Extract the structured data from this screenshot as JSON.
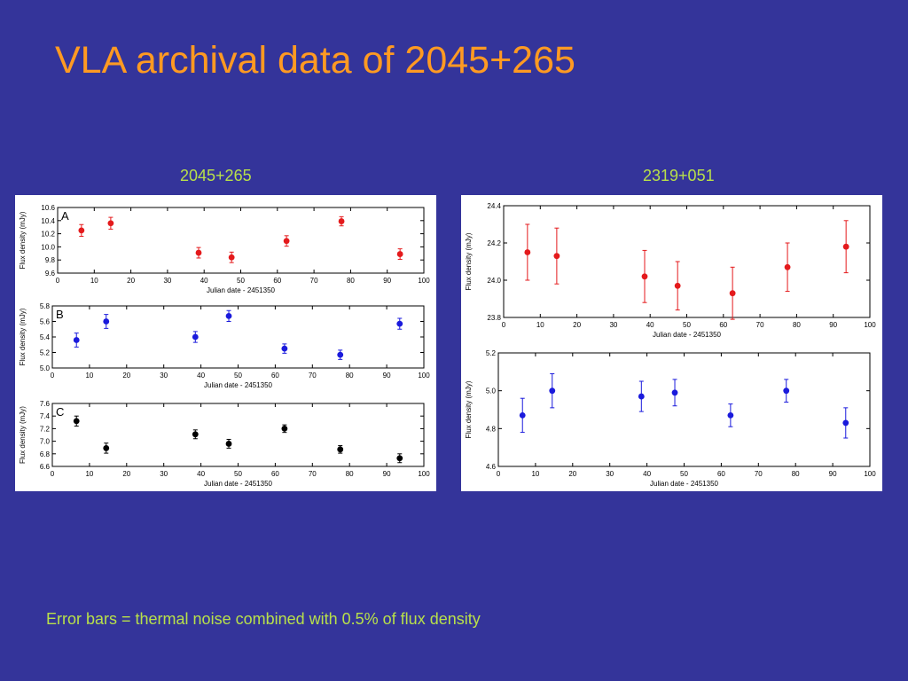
{
  "slide": {
    "title": "VLA archival data of 2045+265",
    "left_heading": "2045+265",
    "right_heading": "2319+051",
    "caption": "Error bars = thermal noise combined with 0.5% of flux density"
  },
  "colors": {
    "background": "#34349a",
    "title": "#ff9a22",
    "headings": "#b8e04a",
    "red": "#e41a1c",
    "blue": "#1a1adc",
    "black": "#000000"
  },
  "chart_data": [
    {
      "id": "A",
      "type": "scatter",
      "panel_label": "A",
      "xlabel": "Julian date - 2451350",
      "ylabel": "Flux density (mJy)",
      "xlim": [
        0,
        100
      ],
      "ylim": [
        9.6,
        10.6
      ],
      "xticks": [
        0,
        10,
        20,
        30,
        40,
        50,
        60,
        70,
        80,
        90,
        100
      ],
      "yticks": [
        "9.6",
        "9.8",
        "10.0",
        "10.2",
        "10.4",
        "10.6"
      ],
      "color": "red",
      "points": [
        {
          "x": 6.5,
          "y": 10.25,
          "err": 0.09
        },
        {
          "x": 14.5,
          "y": 10.36,
          "err": 0.09
        },
        {
          "x": 38.5,
          "y": 9.91,
          "err": 0.08
        },
        {
          "x": 47.5,
          "y": 9.84,
          "err": 0.08
        },
        {
          "x": 62.5,
          "y": 10.09,
          "err": 0.08
        },
        {
          "x": 77.5,
          "y": 10.39,
          "err": 0.07
        },
        {
          "x": 93.5,
          "y": 9.89,
          "err": 0.08
        }
      ]
    },
    {
      "id": "B",
      "type": "scatter",
      "panel_label": "B",
      "xlabel": "Julian date - 2451350",
      "ylabel": "Flux density (mJy)",
      "xlim": [
        0,
        100
      ],
      "ylim": [
        5.0,
        5.8
      ],
      "xticks": [
        0,
        10,
        20,
        30,
        40,
        50,
        60,
        70,
        80,
        90,
        100
      ],
      "yticks": [
        "5.0",
        "5.2",
        "5.4",
        "5.6",
        "5.8"
      ],
      "color": "blue",
      "points": [
        {
          "x": 6.5,
          "y": 5.36,
          "err": 0.09
        },
        {
          "x": 14.5,
          "y": 5.6,
          "err": 0.09
        },
        {
          "x": 38.5,
          "y": 5.4,
          "err": 0.07
        },
        {
          "x": 47.5,
          "y": 5.67,
          "err": 0.07
        },
        {
          "x": 62.5,
          "y": 5.25,
          "err": 0.06
        },
        {
          "x": 77.5,
          "y": 5.17,
          "err": 0.06
        },
        {
          "x": 93.5,
          "y": 5.57,
          "err": 0.07
        }
      ]
    },
    {
      "id": "C",
      "type": "scatter",
      "panel_label": "C",
      "xlabel": "Julian date - 2451350",
      "ylabel": "Flux density (mJy)",
      "xlim": [
        0,
        100
      ],
      "ylim": [
        6.6,
        7.6
      ],
      "xticks": [
        0,
        10,
        20,
        30,
        40,
        50,
        60,
        70,
        80,
        90,
        100
      ],
      "yticks": [
        "6.6",
        "6.8",
        "7.0",
        "7.2",
        "7.4",
        "7.6"
      ],
      "color": "black",
      "points": [
        {
          "x": 6.5,
          "y": 7.32,
          "err": 0.08
        },
        {
          "x": 14.5,
          "y": 6.89,
          "err": 0.08
        },
        {
          "x": 38.5,
          "y": 7.11,
          "err": 0.07
        },
        {
          "x": 47.5,
          "y": 6.96,
          "err": 0.07
        },
        {
          "x": 62.5,
          "y": 7.2,
          "err": 0.06
        },
        {
          "x": 77.5,
          "y": 6.87,
          "err": 0.06
        },
        {
          "x": 93.5,
          "y": 6.73,
          "err": 0.07
        }
      ]
    },
    {
      "id": "D",
      "type": "scatter",
      "panel_label": "",
      "xlabel": "Julian date - 2451350",
      "ylabel": "Flux density (mJy)",
      "xlim": [
        0,
        100
      ],
      "ylim": [
        23.8,
        24.4
      ],
      "xticks": [
        0,
        10,
        20,
        30,
        40,
        50,
        60,
        70,
        80,
        90,
        100
      ],
      "yticks": [
        "23.8",
        "24.0",
        "24.2",
        "24.4"
      ],
      "color": "red",
      "points": [
        {
          "x": 6.5,
          "y": 24.15,
          "err": 0.15
        },
        {
          "x": 14.5,
          "y": 24.13,
          "err": 0.15
        },
        {
          "x": 38.5,
          "y": 24.02,
          "err": 0.14
        },
        {
          "x": 47.5,
          "y": 23.97,
          "err": 0.13
        },
        {
          "x": 62.5,
          "y": 23.93,
          "err": 0.14
        },
        {
          "x": 77.5,
          "y": 24.07,
          "err": 0.13
        },
        {
          "x": 93.5,
          "y": 24.18,
          "err": 0.14
        }
      ]
    },
    {
      "id": "E",
      "type": "scatter",
      "panel_label": "",
      "xlabel": "Julian date - 2451350",
      "ylabel": "Flux density (mJy)",
      "xlim": [
        0,
        100
      ],
      "ylim": [
        4.6,
        5.2
      ],
      "xticks": [
        0,
        10,
        20,
        30,
        40,
        50,
        60,
        70,
        80,
        90,
        100
      ],
      "yticks": [
        "4.6",
        "4.8",
        "5.0",
        "5.2"
      ],
      "color": "blue",
      "points": [
        {
          "x": 6.5,
          "y": 4.87,
          "err": 0.09
        },
        {
          "x": 14.5,
          "y": 5.0,
          "err": 0.09
        },
        {
          "x": 38.5,
          "y": 4.97,
          "err": 0.08
        },
        {
          "x": 47.5,
          "y": 4.99,
          "err": 0.07
        },
        {
          "x": 62.5,
          "y": 4.87,
          "err": 0.06
        },
        {
          "x": 77.5,
          "y": 5.0,
          "err": 0.06
        },
        {
          "x": 93.5,
          "y": 4.83,
          "err": 0.08
        }
      ]
    }
  ]
}
